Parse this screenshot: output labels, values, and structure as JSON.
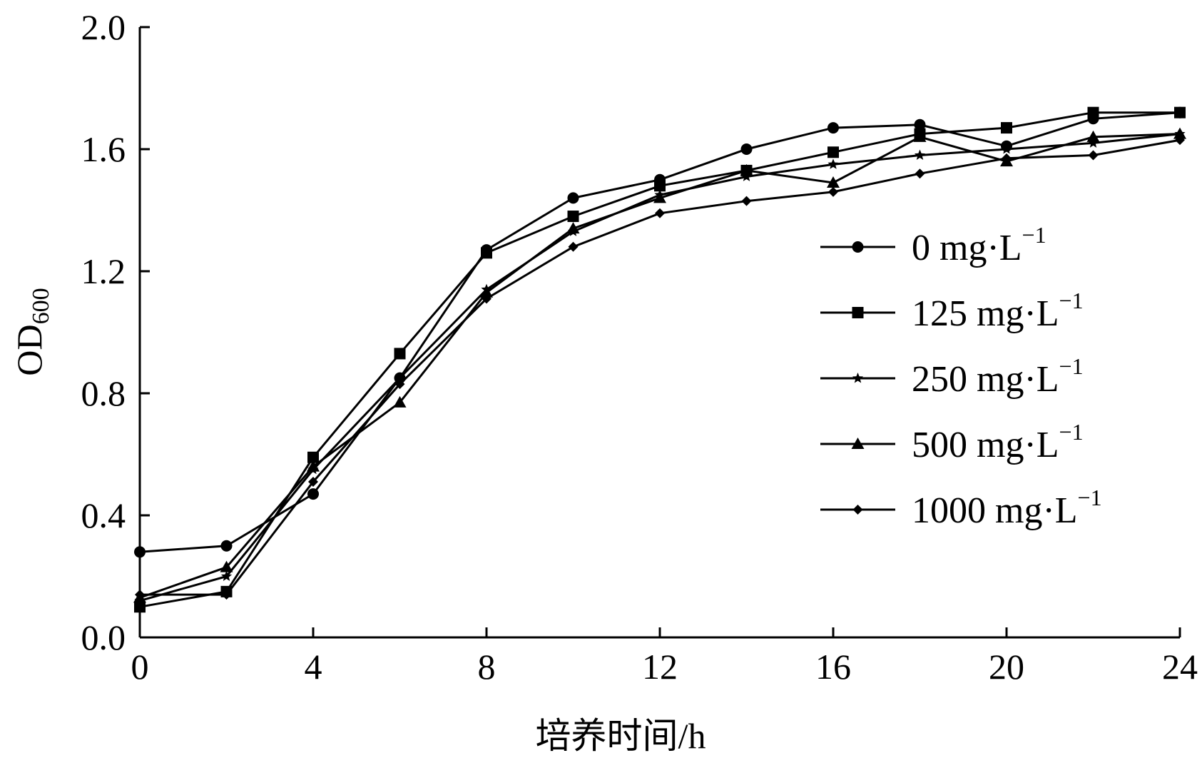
{
  "chart_data": {
    "type": "line",
    "title": "",
    "xlabel": "培养时间/h",
    "ylabel": "OD",
    "ylabel_subscript": "600",
    "xlim": [
      0,
      24
    ],
    "ylim": [
      0.0,
      2.0
    ],
    "x_ticks": [
      "0",
      "4",
      "8",
      "12",
      "16",
      "20",
      "24"
    ],
    "y_ticks": [
      "0.0",
      "0.4",
      "0.8",
      "1.2",
      "1.6",
      "2.0"
    ],
    "grid": false,
    "legend_position": "right",
    "x": [
      0,
      2,
      4,
      6,
      8,
      10,
      12,
      14,
      16,
      18,
      20,
      22,
      24
    ],
    "series": [
      {
        "name": "0 mg·L",
        "sup": "−1",
        "marker": "circle",
        "values": [
          0.28,
          0.3,
          0.47,
          0.85,
          1.27,
          1.44,
          1.5,
          1.6,
          1.67,
          1.68,
          1.61,
          1.7,
          1.72
        ]
      },
      {
        "name": "125 mg·L",
        "sup": "−1",
        "marker": "square",
        "values": [
          0.1,
          0.15,
          0.59,
          0.93,
          1.26,
          1.38,
          1.48,
          1.53,
          1.59,
          1.65,
          1.67,
          1.72,
          1.72
        ]
      },
      {
        "name": "250 mg·L",
        "sup": "−1",
        "marker": "star",
        "values": [
          0.12,
          0.2,
          0.55,
          0.85,
          1.14,
          1.33,
          1.45,
          1.51,
          1.55,
          1.58,
          1.6,
          1.62,
          1.65
        ]
      },
      {
        "name": "500 mg·L",
        "sup": "−1",
        "marker": "triangle",
        "values": [
          0.13,
          0.23,
          0.56,
          0.77,
          1.13,
          1.34,
          1.44,
          1.53,
          1.49,
          1.64,
          1.56,
          1.64,
          1.65
        ]
      },
      {
        "name": "1000 mg·L",
        "sup": "−1",
        "marker": "diamond",
        "values": [
          0.14,
          0.14,
          0.51,
          0.83,
          1.11,
          1.28,
          1.39,
          1.43,
          1.46,
          1.52,
          1.57,
          1.58,
          1.63
        ]
      }
    ]
  }
}
